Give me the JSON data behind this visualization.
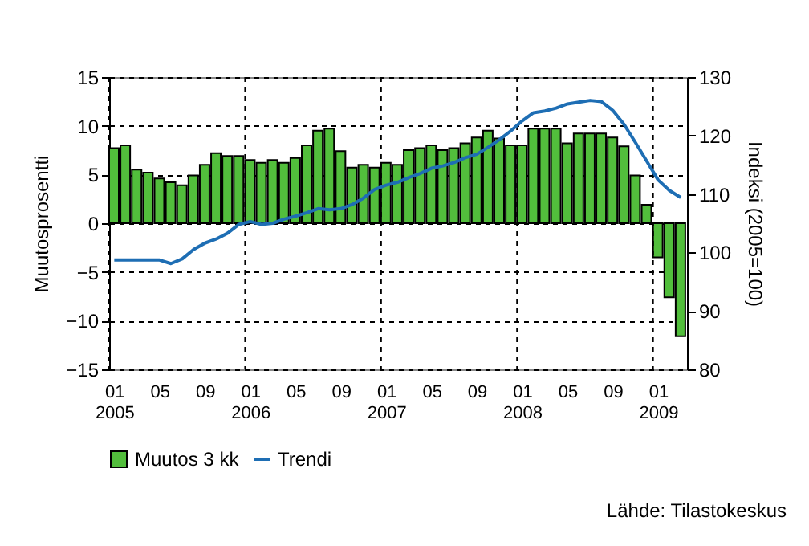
{
  "chart_data": {
    "type": "bar",
    "categories": [
      "01\n2005",
      null,
      null,
      null,
      "05",
      null,
      null,
      null,
      "09",
      null,
      null,
      null,
      "01\n2006",
      null,
      null,
      null,
      "05",
      null,
      null,
      null,
      "09",
      null,
      null,
      null,
      "01\n2007",
      null,
      null,
      null,
      "05",
      null,
      null,
      null,
      "09",
      null,
      null,
      null,
      "01\n2008",
      null,
      null,
      null,
      "05",
      null,
      null,
      null,
      "09",
      null,
      null,
      null,
      "01\n2009",
      null,
      null
    ],
    "series": [
      {
        "name": "Muutos 3 kk",
        "color": "#52be3c",
        "values": [
          7.7,
          8.0,
          5.5,
          5.2,
          4.6,
          4.2,
          3.9,
          4.9,
          6.0,
          7.2,
          6.9,
          6.9,
          6.5,
          6.2,
          6.5,
          6.2,
          6.7,
          8.0,
          9.5,
          9.7,
          7.4,
          5.7,
          6.0,
          5.7,
          6.2,
          6.0,
          7.5,
          7.7,
          8.0,
          7.5,
          7.7,
          8.2,
          8.8,
          9.5,
          8.7,
          8.0,
          8.0,
          9.7,
          9.7,
          9.7,
          8.2,
          9.2,
          9.2,
          9.2,
          8.8,
          7.9,
          4.9,
          1.9,
          -3.5,
          -7.6,
          -11.6
        ]
      },
      {
        "name": "Trendi",
        "type": "line",
        "axis": "y2",
        "color": "#1e6eb4",
        "values": [
          98.7,
          98.7,
          98.7,
          98.7,
          98.7,
          98.1,
          98.9,
          100.5,
          101.6,
          102.3,
          103.3,
          104.8,
          105.3,
          104.8,
          105.0,
          105.7,
          106.2,
          106.8,
          107.5,
          107.3,
          107.5,
          108.2,
          109.3,
          110.8,
          111.5,
          112.0,
          112.8,
          113.5,
          114.4,
          114.8,
          115.4,
          116.2,
          116.8,
          118.0,
          119.3,
          120.8,
          122.5,
          123.9,
          124.2,
          124.7,
          125.4,
          125.7,
          126.0,
          125.8,
          124.3,
          121.9,
          118.8,
          115.6,
          112.4,
          110.6,
          109.4
        ]
      }
    ],
    "ylabel": "Muutosprosentti",
    "y2label": "Indeksi (2005=100)",
    "ylim": [
      -15,
      15
    ],
    "yticks": [
      -15,
      -10,
      -5,
      0,
      5,
      10,
      15
    ],
    "y2lim": [
      80,
      130
    ],
    "y2ticks": [
      80,
      90,
      100,
      110,
      120,
      130
    ],
    "grid": true,
    "legend": "bottom",
    "annotations": [
      "Lähde: Tilastokeskus"
    ]
  }
}
